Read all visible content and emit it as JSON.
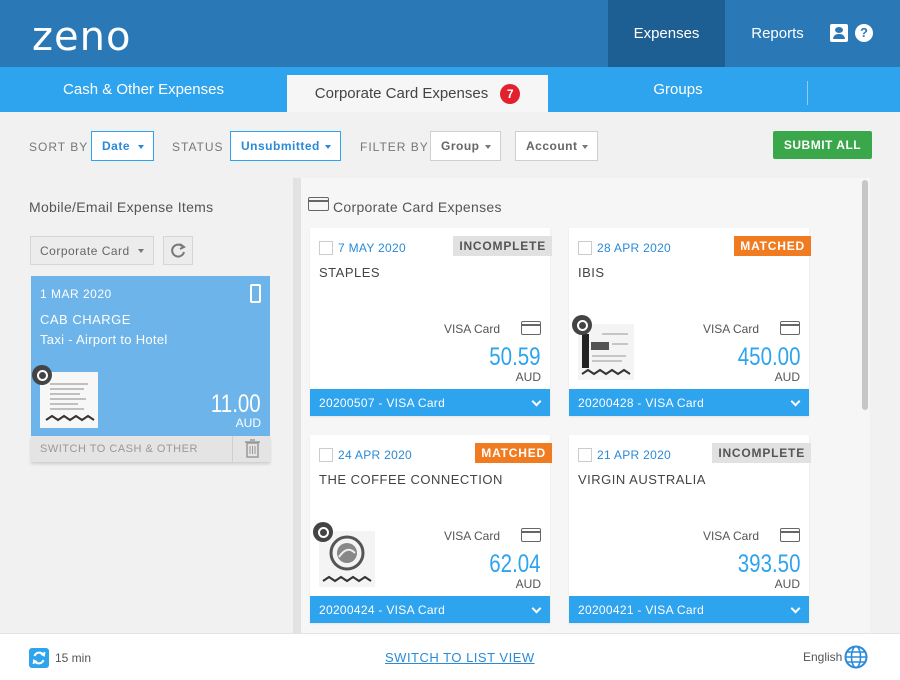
{
  "header": {
    "logo": "zeno",
    "nav_expenses": "Expenses",
    "nav_reports": "Reports"
  },
  "tabs": {
    "cash": "Cash & Other Expenses",
    "corporate": "Corporate Card Expenses",
    "corporate_badge": "7",
    "groups": "Groups"
  },
  "filters": {
    "sort_by_label": "SORT BY",
    "sort_by_value": "Date",
    "status_label": "STATUS",
    "status_value": "Unsubmitted",
    "filter_by_label": "FILTER BY",
    "group_value": "Group",
    "account_value": "Account",
    "submit_all": "SUBMIT ALL"
  },
  "left_panel": {
    "title": "Mobile/Email Expense Items",
    "dropdown_value": "Corporate Card",
    "item": {
      "date": "1 MAR 2020",
      "merchant": "CAB CHARGE",
      "description": "Taxi - Airport to Hotel",
      "amount": "11.00",
      "currency": "AUD",
      "switch_label": "SWITCH TO CASH & OTHER"
    }
  },
  "main_panel": {
    "title": "Corporate Card Expenses",
    "cards": [
      {
        "date": "7 MAY 2020",
        "status": "INCOMPLETE",
        "merchant": "STAPLES",
        "card": "VISA Card",
        "amount": "50.59",
        "currency": "AUD",
        "footer": "20200507 - VISA Card"
      },
      {
        "date": "28 APR 2020",
        "status": "MATCHED",
        "merchant": "IBIS",
        "card": "VISA Card",
        "amount": "450.00",
        "currency": "AUD",
        "footer": "20200428 - VISA Card"
      },
      {
        "date": "24 APR 2020",
        "status": "MATCHED",
        "merchant": "THE COFFEE CONNECTION",
        "card": "VISA Card",
        "amount": "62.04",
        "currency": "AUD",
        "footer": "20200424 - VISA Card"
      },
      {
        "date": "21 APR 2020",
        "status": "INCOMPLETE",
        "merchant": "VIRGIN AUSTRALIA",
        "card": "VISA Card",
        "amount": "393.50",
        "currency": "AUD",
        "footer": "20200421 - VISA Card"
      }
    ]
  },
  "footer": {
    "sync_interval": "15 min",
    "list_view_link": "SWITCH TO LIST VIEW",
    "language": "English"
  },
  "colors": {
    "topbar": "#2a79b6",
    "tabs": "#2ea3ee",
    "matched": "#f17b20",
    "submit": "#3aa84a",
    "badge": "#e2202e"
  }
}
